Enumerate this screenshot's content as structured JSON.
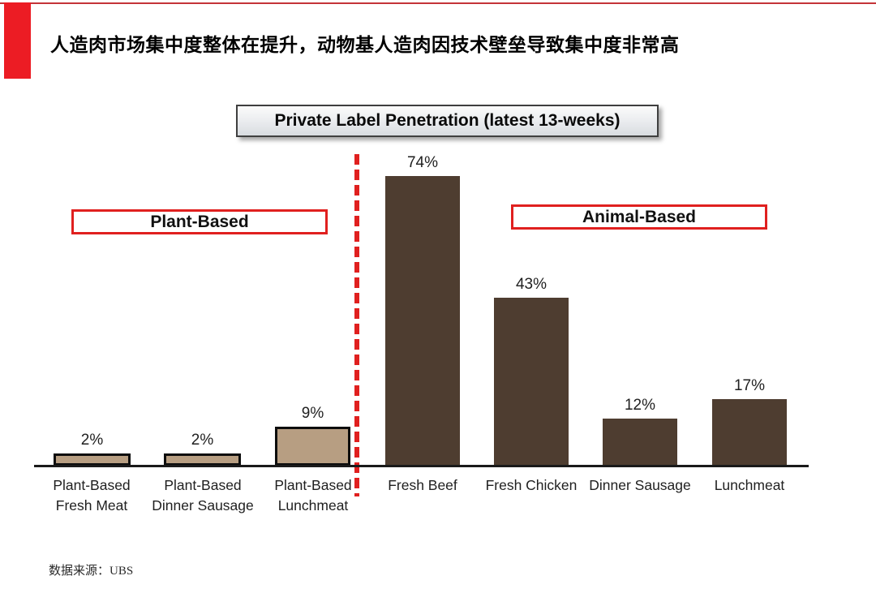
{
  "page": {
    "headline": "人造肉市场集中度整体在提升，动物基人造肉因技术壁垒导致集中度非常高",
    "source": "数据来源：UBS",
    "accent_red": "#ec1c24",
    "top_rule_red": "#c43438"
  },
  "chart_data": {
    "type": "bar",
    "title": "Private Label Penetration (latest 13-weeks)",
    "group_labels": [
      "Plant-Based",
      "Animal-Based"
    ],
    "categories": [
      "Plant-Based\nFresh Meat",
      "Plant-Based\nDinner Sausage",
      "Plant-Based\nLunchmeat",
      "Fresh Beef",
      "Fresh Chicken",
      "Dinner Sausage",
      "Lunchmeat"
    ],
    "values": [
      2,
      2,
      9,
      74,
      43,
      12,
      17
    ],
    "value_labels": [
      "2%",
      "2%",
      "9%",
      "74%",
      "43%",
      "12%",
      "17%"
    ],
    "groups": [
      {
        "name": "Plant-Based",
        "categories": [
          "Plant-Based Fresh Meat",
          "Plant-Based Dinner Sausage",
          "Plant-Based Lunchmeat"
        ],
        "values": [
          2,
          2,
          9
        ]
      },
      {
        "name": "Animal-Based",
        "categories": [
          "Fresh Beef",
          "Fresh Chicken",
          "Dinner Sausage",
          "Lunchmeat"
        ],
        "values": [
          74,
          43,
          12,
          17
        ]
      }
    ],
    "unit": "%",
    "ylim": [
      0,
      80
    ],
    "grid": false,
    "legend": "none",
    "colors": {
      "plant_fill": "#b79e82",
      "plant_border": "#0d0d0d",
      "animal_fill": "#4e3d30",
      "divider_red": "#e0201f",
      "group_box_border": "#e0201f"
    }
  }
}
